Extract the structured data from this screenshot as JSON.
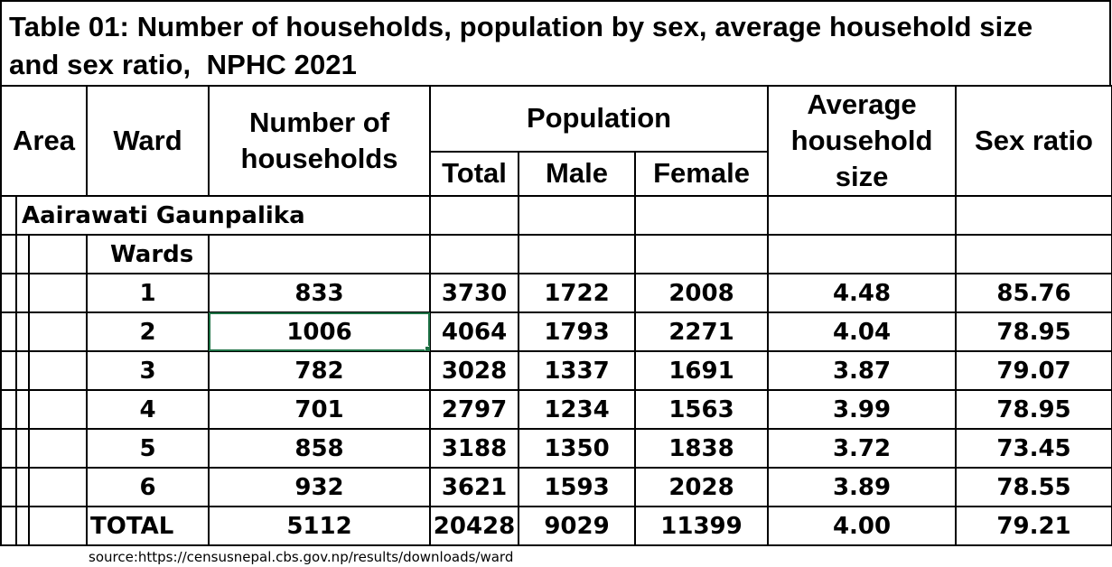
{
  "title": {
    "line1": "Table 01: Number of households, population by sex, average household size",
    "line2": "and sex ratio,  NPHC 2021"
  },
  "headers": {
    "area": "Area",
    "ward": "Ward",
    "households": "Number of households",
    "population": "Population",
    "total": "Total",
    "male": "Male",
    "female": "Female",
    "avg_size": "Average household size",
    "sex_ratio": "Sex ratio"
  },
  "municipality": "Aairawati Gaunpalika",
  "wards_label": "Wards",
  "rows": [
    {
      "ward": "1",
      "households": "833",
      "total": "3730",
      "male": "1722",
      "female": "2008",
      "avg": "4.48",
      "ratio": "85.76"
    },
    {
      "ward": "2",
      "households": "1006",
      "total": "4064",
      "male": "1793",
      "female": "2271",
      "avg": "4.04",
      "ratio": "78.95"
    },
    {
      "ward": "3",
      "households": "782",
      "total": "3028",
      "male": "1337",
      "female": "1691",
      "avg": "3.87",
      "ratio": "79.07"
    },
    {
      "ward": "4",
      "households": "701",
      "total": "2797",
      "male": "1234",
      "female": "1563",
      "avg": "3.99",
      "ratio": "78.95"
    },
    {
      "ward": "5",
      "households": "858",
      "total": "3188",
      "male": "1350",
      "female": "1838",
      "avg": "3.72",
      "ratio": "73.45"
    },
    {
      "ward": "6",
      "households": "932",
      "total": "3621",
      "male": "1593",
      "female": "2028",
      "avg": "3.89",
      "ratio": "78.55"
    }
  ],
  "total_row": {
    "label": "TOTAL",
    "households": "5112",
    "total": "20428",
    "male": "9029",
    "female": "11399",
    "avg": "4.00",
    "ratio": "79.21"
  },
  "source": "source:https://censusnepal.cbs.gov.np/results/downloads/ward",
  "colors": {
    "grid": "#000000",
    "selection": "#1e7145",
    "faint_grid": "#d9d9d9"
  }
}
